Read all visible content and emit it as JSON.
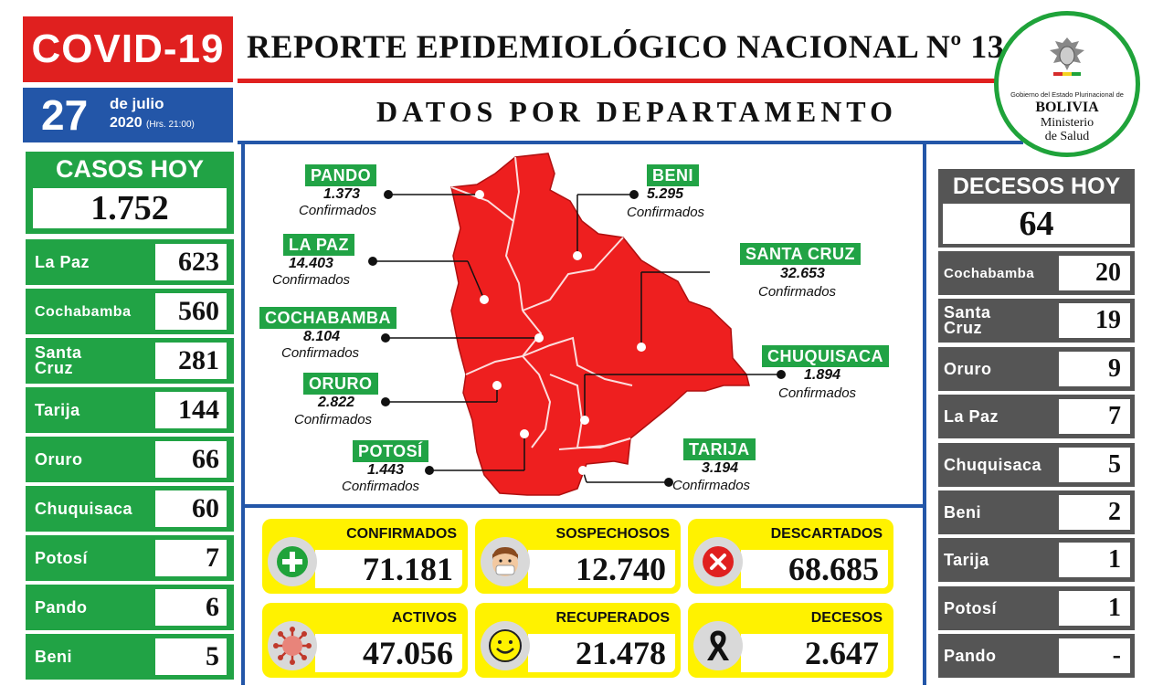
{
  "header": {
    "covid_label": "COVID-19",
    "report_title": "REPORTE  EPIDEMIOLÓGICO NACIONAL  Nº 134",
    "subtitle": "DATOS POR DEPARTAMENTO",
    "date_day": "27",
    "date_month": "de julio",
    "date_year": "2020",
    "date_hours": "(Hrs. 21:00)"
  },
  "logo": {
    "government": "Gobierno del Estado Plurinacional de",
    "country": "BOLIVIA",
    "ministry_line1": "Ministerio",
    "ministry_line2": "de Salud"
  },
  "casos_hoy": {
    "title": "CASOS HOY",
    "total": "1.752",
    "rows": [
      {
        "name": "La Paz",
        "value": "623"
      },
      {
        "name": "Cochabamba",
        "value": "560"
      },
      {
        "name": "Santa\nCruz",
        "value": "281"
      },
      {
        "name": "Tarija",
        "value": "144"
      },
      {
        "name": "Oruro",
        "value": "66"
      },
      {
        "name": "Chuquisaca",
        "value": "60"
      },
      {
        "name": "Potosí",
        "value": "7"
      },
      {
        "name": "Pando",
        "value": "6"
      },
      {
        "name": "Beni",
        "value": "5"
      }
    ]
  },
  "decesos_hoy": {
    "title": "DECESOS HOY",
    "total": "64",
    "rows": [
      {
        "name": "Cochabamba",
        "value": "20"
      },
      {
        "name": "Santa\nCruz",
        "value": "19"
      },
      {
        "name": "Oruro",
        "value": "9"
      },
      {
        "name": "La Paz",
        "value": "7"
      },
      {
        "name": "Chuquisaca",
        "value": "5"
      },
      {
        "name": "Beni",
        "value": "2"
      },
      {
        "name": "Tarija",
        "value": "1"
      },
      {
        "name": "Potosí",
        "value": "1"
      },
      {
        "name": "Pando",
        "value": "-"
      }
    ]
  },
  "map": {
    "confirmed_word": "Confirmados",
    "map_color": "#ee1f1f",
    "departments": {
      "pando": {
        "name": "PANDO",
        "value": "1.373"
      },
      "la_paz": {
        "name": "LA PAZ",
        "value": "14.403"
      },
      "cochabamba": {
        "name": "COCHABAMBA",
        "value": "8.104"
      },
      "oruro": {
        "name": "ORURO",
        "value": "2.822"
      },
      "potosi": {
        "name": "POTOSÍ",
        "value": "1.443"
      },
      "beni": {
        "name": "BENI",
        "value": "5.295"
      },
      "santa_cruz": {
        "name": "SANTA CRUZ",
        "value": "32.653"
      },
      "chuquisaca": {
        "name": "CHUQUISACA",
        "value": "1.894"
      },
      "tarija": {
        "name": "TARIJA",
        "value": "3.194"
      }
    }
  },
  "summary": {
    "confirmados": {
      "label": "CONFIRMADOS",
      "value": "71.181",
      "icon": "plus-icon"
    },
    "sospechosos": {
      "label": "SOSPECHOSOS",
      "value": "12.740",
      "icon": "masked-face-icon"
    },
    "descartados": {
      "label": "DESCARTADOS",
      "value": "68.685",
      "icon": "x-circle-icon"
    },
    "activos": {
      "label": "ACTIVOS",
      "value": "47.056",
      "icon": "virus-icon"
    },
    "recuperados": {
      "label": "RECUPERADOS",
      "value": "21.478",
      "icon": "smiley-icon"
    },
    "decesos": {
      "label": "DECESOS",
      "value": "2.647",
      "icon": "mourning-ribbon-icon"
    }
  },
  "colors": {
    "red": "#e0201f",
    "blue": "#2356a8",
    "green": "#21a345",
    "gray": "#555555",
    "yellow": "#fff200"
  }
}
